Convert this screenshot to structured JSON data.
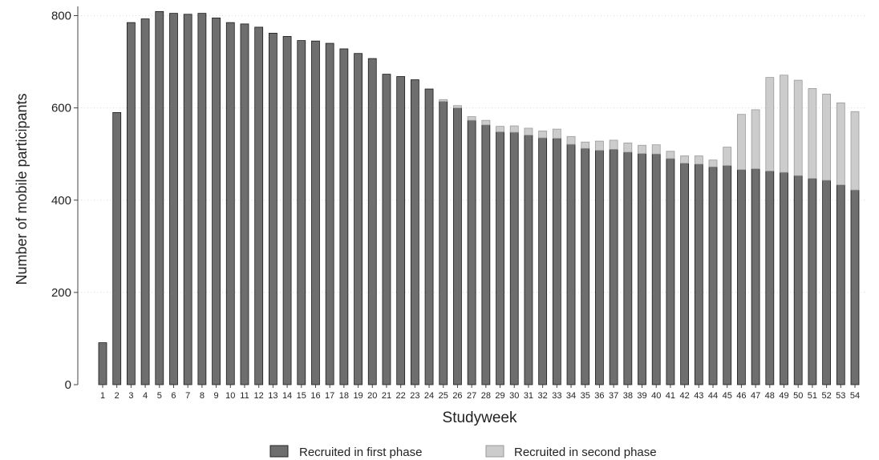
{
  "chart_data": {
    "type": "bar",
    "stacked": true,
    "title": "",
    "xlabel": "Studyweek",
    "ylabel": "Number of mobile participants",
    "ylim": [
      0,
      820
    ],
    "yticks": [
      0,
      200,
      400,
      600,
      800
    ],
    "grid": "horizontal dotted",
    "legend_position": "bottom",
    "categories": [
      "1",
      "2",
      "3",
      "4",
      "5",
      "6",
      "7",
      "8",
      "9",
      "10",
      "11",
      "12",
      "13",
      "14",
      "15",
      "16",
      "17",
      "18",
      "19",
      "20",
      "21",
      "22",
      "23",
      "24",
      "25",
      "26",
      "27",
      "28",
      "29",
      "30",
      "31",
      "32",
      "33",
      "34",
      "35",
      "36",
      "37",
      "38",
      "39",
      "40",
      "41",
      "42",
      "43",
      "44",
      "45",
      "46",
      "47",
      "48",
      "49",
      "50",
      "51",
      "52",
      "53",
      "54"
    ],
    "series": [
      {
        "name": "Recruited in first phase",
        "color": "#6e6e6e",
        "values": [
          91,
          590,
          785,
          793,
          809,
          805,
          803,
          805,
          795,
          785,
          782,
          775,
          762,
          755,
          746,
          745,
          740,
          728,
          718,
          707,
          673,
          668,
          661,
          641,
          614,
          600,
          573,
          563,
          548,
          547,
          541,
          535,
          534,
          521,
          512,
          508,
          510,
          504,
          501,
          500,
          490,
          480,
          478,
          472,
          475,
          466,
          468,
          463,
          460,
          453,
          447,
          443,
          433,
          422
        ]
      },
      {
        "name": "Recruited in second phase",
        "color": "#cccccc",
        "values": [
          0,
          0,
          0,
          0,
          0,
          0,
          0,
          0,
          0,
          0,
          0,
          0,
          0,
          0,
          0,
          0,
          0,
          0,
          0,
          0,
          0,
          0,
          0,
          0,
          4,
          5,
          8,
          10,
          12,
          14,
          15,
          15,
          20,
          17,
          14,
          20,
          20,
          20,
          18,
          20,
          16,
          16,
          18,
          15,
          40,
          120,
          128,
          203,
          211,
          207,
          195,
          187,
          178,
          170
        ]
      }
    ]
  }
}
